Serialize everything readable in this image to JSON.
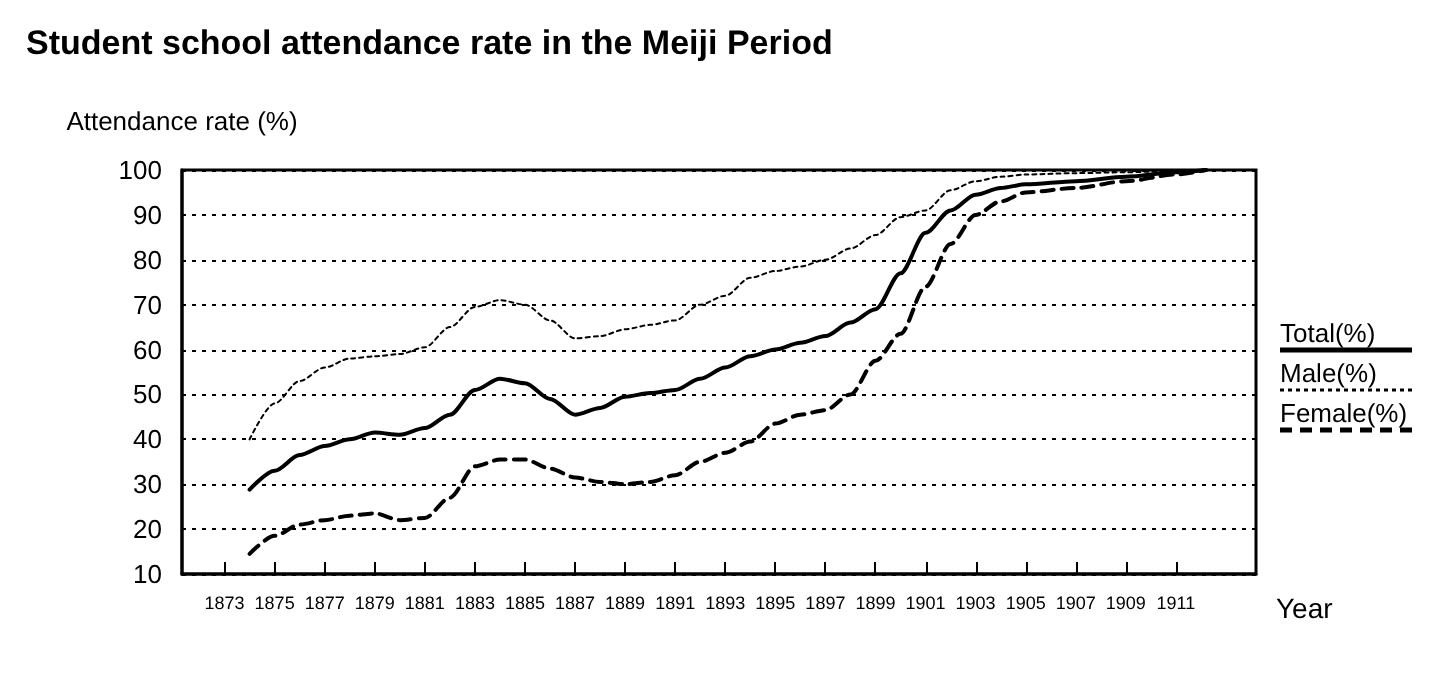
{
  "chart_data": {
    "type": "line",
    "title": "Student school attendance rate in the Meiji Period",
    "xlabel": "Year",
    "ylabel": "Attendance rate (%)",
    "x": [
      1874,
      1875,
      1876,
      1877,
      1878,
      1879,
      1880,
      1881,
      1882,
      1883,
      1884,
      1885,
      1886,
      1887,
      1888,
      1889,
      1890,
      1891,
      1892,
      1893,
      1894,
      1895,
      1896,
      1897,
      1898,
      1899,
      1900,
      1901,
      1902,
      1903,
      1904,
      1905,
      1907,
      1909,
      1911,
      1912.2
    ],
    "series": [
      {
        "name": "Total(%)",
        "color": "#000000",
        "line_style": "solid",
        "values": [
          28.8,
          33,
          36.5,
          38.5,
          40,
          41.5,
          41,
          42.5,
          45.5,
          51,
          53.5,
          52.5,
          49,
          45.5,
          47,
          49.5,
          50.3,
          51,
          53.5,
          56,
          58.5,
          60,
          61.5,
          63,
          66,
          69,
          77,
          86,
          91,
          94.5,
          96,
          96.8,
          97.5,
          98.5,
          99.5,
          100
        ]
      },
      {
        "name": "Male(%)",
        "color": "#000000",
        "line_style": "dotted",
        "values": [
          40,
          48,
          53,
          56,
          58,
          58.5,
          59,
          60.5,
          65,
          69.5,
          71,
          70,
          66.5,
          62.5,
          63,
          64.5,
          65.5,
          66.5,
          70,
          72,
          76,
          77.5,
          78.5,
          80,
          82.5,
          85.5,
          89.5,
          91,
          95.5,
          97.5,
          98.5,
          99,
          99.3,
          99.5,
          99.8,
          100
        ]
      },
      {
        "name": "Female(%)",
        "color": "#000000",
        "line_style": "dashed",
        "values": [
          14.5,
          18.5,
          21,
          22,
          23,
          23.5,
          22,
          22.5,
          27,
          34,
          35.5,
          35.5,
          33.5,
          31.5,
          30.5,
          30,
          30.5,
          32,
          35,
          37,
          39.5,
          43.5,
          45.5,
          46.5,
          50,
          57.5,
          63.5,
          74,
          83.5,
          90,
          93,
          95,
          96,
          97.5,
          99,
          100
        ]
      }
    ],
    "xlim": [
      1871.3,
      1914.2
    ],
    "xticks": [
      1873,
      1875,
      1877,
      1879,
      1881,
      1883,
      1885,
      1887,
      1889,
      1891,
      1893,
      1895,
      1897,
      1899,
      1901,
      1903,
      1905,
      1907,
      1909,
      1911
    ],
    "ylim": [
      10,
      100
    ],
    "yticks": [
      10,
      20,
      30,
      40,
      50,
      60,
      70,
      80,
      90,
      100
    ],
    "grid": "y",
    "legend": "right",
    "marker": "none"
  }
}
